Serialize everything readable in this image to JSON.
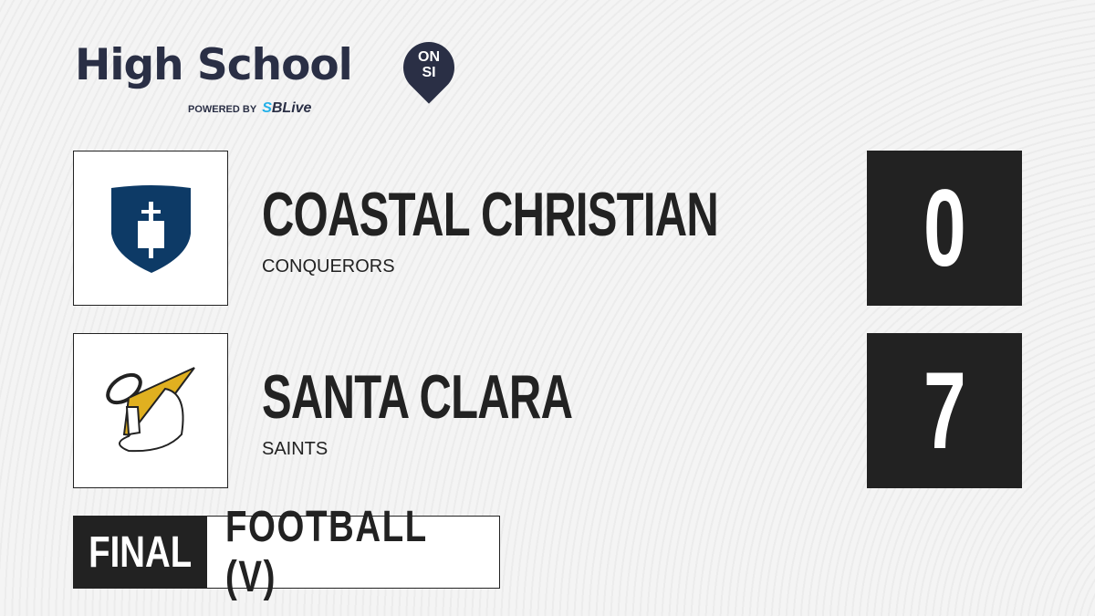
{
  "brand": {
    "title": "High School",
    "badge_top": "ON",
    "badge_bottom": "SI",
    "powered_by": "POWERED BY",
    "partner_prefix": "S",
    "partner": "SBLive"
  },
  "teams": [
    {
      "name": "COASTAL CHRISTIAN",
      "mascot": "CONQUERORS",
      "score": "0",
      "logo": "shield-cross-logo",
      "color": "#0d3a66"
    },
    {
      "name": "SANTA CLARA",
      "mascot": "SAINTS",
      "score": "7",
      "logo": "saint-mascot-logo",
      "color": "#e0b020"
    }
  ],
  "status": "FINAL",
  "sport": "FOOTBALL (V)"
}
